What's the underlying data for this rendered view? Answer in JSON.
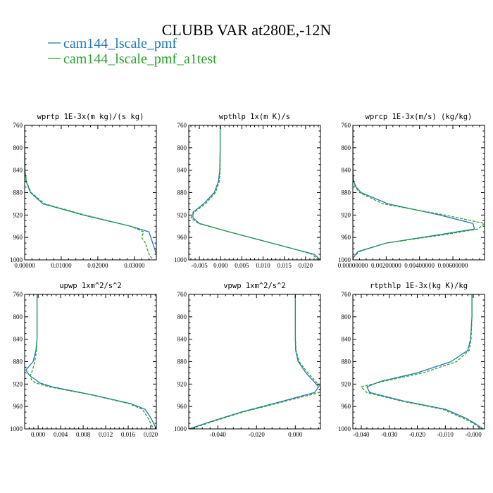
{
  "figure": {
    "title": "CLUBB VAR at280E,-12N",
    "legend": [
      {
        "name": "cam144_lscale_pmf",
        "color": "#1f77b4",
        "dash": "solid"
      },
      {
        "name": "cam144_lscale_pmf_a1test",
        "color": "#2ca02c",
        "dash": "dashed"
      }
    ]
  },
  "chart_data": [
    {
      "type": "line",
      "title": "wprtp  1E-3x(m kg)/(s kg)",
      "xlim": [
        0,
        0.036
      ],
      "xticks": [
        0,
        0.01,
        0.02,
        0.03
      ],
      "xtick_labels": [
        "0.00000",
        "0.01000",
        "0.02000",
        "0.03000"
      ],
      "ylim": [
        760,
        1000
      ],
      "yticks": [
        760,
        800,
        840,
        880,
        920,
        960,
        1000
      ],
      "y": [
        760,
        800,
        840,
        860,
        870,
        880,
        900,
        920,
        940,
        950,
        960,
        970,
        980,
        990,
        1000
      ],
      "series": [
        {
          "name": "cam144_lscale_pmf",
          "x": [
            0,
            0,
            0.0001,
            0.0004,
            0.001,
            0.0016,
            0.005,
            0.016,
            0.029,
            0.034,
            0.0345,
            0.035,
            0.0355,
            0.036,
            0.0365
          ]
        },
        {
          "name": "cam144_lscale_pmf_a1test",
          "x": [
            0,
            0,
            0.0001,
            0.0005,
            0.0011,
            0.0018,
            0.0055,
            0.0165,
            0.029,
            0.0325,
            0.032,
            0.033,
            0.0335,
            0.034,
            0.035
          ]
        }
      ]
    },
    {
      "type": "line",
      "title": "wpthlp  1x(m K)/s",
      "xlim": [
        -0.0075,
        0.0235
      ],
      "xticks": [
        -0.005,
        0,
        0.005,
        0.01,
        0.015,
        0.02
      ],
      "xtick_labels": [
        "-0.005",
        "0.000",
        "0.005",
        "0.010",
        "0.015",
        "0.020"
      ],
      "ylim": [
        760,
        1000
      ],
      "yticks": [
        760,
        800,
        840,
        880,
        920,
        960,
        1000
      ],
      "y": [
        760,
        800,
        840,
        860,
        880,
        900,
        915,
        925,
        935,
        950,
        970,
        980,
        990,
        1000
      ],
      "series": [
        {
          "name": "cam144_lscale_pmf",
          "x": [
            -0.0001,
            -0.0001,
            -0.0002,
            -0.0005,
            -0.0015,
            -0.004,
            -0.0065,
            -0.0065,
            -0.005,
            0.002,
            0.012,
            0.017,
            0.022,
            0.0235
          ]
        },
        {
          "name": "cam144_lscale_pmf_a1test",
          "x": [
            -0.0001,
            -0.0001,
            -0.0001,
            -0.0003,
            -0.0012,
            -0.0036,
            -0.0062,
            -0.007,
            -0.0052,
            0.002,
            0.012,
            0.017,
            0.0215,
            0.023
          ]
        }
      ]
    },
    {
      "type": "line",
      "title": "wprcp  1E-3x(m/s) (kg/kg)",
      "xlim": [
        0,
        0.0079
      ],
      "xticks": [
        0,
        0.002,
        0.004,
        0.006
      ],
      "xtick_labels": [
        "0.00000000",
        "0.00200000",
        "0.00400000",
        "0.00600000"
      ],
      "ylim": [
        760,
        1000
      ],
      "yticks": [
        760,
        800,
        840,
        880,
        920,
        960,
        1000
      ],
      "y": [
        760,
        800,
        840,
        860,
        870,
        880,
        900,
        920,
        935,
        945,
        955,
        970,
        985,
        995,
        1000
      ],
      "series": [
        {
          "name": "cam144_lscale_pmf",
          "x": [
            0,
            0,
            0,
            5e-05,
            0.0002,
            0.0005,
            0.0021,
            0.0052,
            0.0072,
            0.0073,
            0.0052,
            0.002,
            0.0003,
            5e-05,
            0
          ]
        },
        {
          "name": "cam144_lscale_pmf_a1test",
          "x": [
            0,
            0,
            0,
            5e-05,
            0.00015,
            0.0004,
            0.0018,
            0.0055,
            0.0079,
            0.0075,
            0.0055,
            0.002,
            0.0004,
            5e-05,
            0
          ]
        }
      ]
    },
    {
      "type": "line",
      "title": "upwp  1xm^2/s^2",
      "xlim": [
        -0.0024,
        0.021
      ],
      "xticks": [
        0,
        0.004,
        0.008,
        0.012,
        0.016,
        0.02
      ],
      "xtick_labels": [
        "0.000",
        "0.004",
        "0.008",
        "0.012",
        "0.016",
        "0.020"
      ],
      "ylim": [
        760,
        1000
      ],
      "yticks": [
        760,
        800,
        840,
        880,
        920,
        960,
        1000
      ],
      "y": [
        760,
        800,
        840,
        860,
        880,
        895,
        905,
        912,
        918,
        925,
        940,
        955,
        965,
        980,
        1000
      ],
      "series": [
        {
          "name": "cam144_lscale_pmf",
          "x": [
            -0.0002,
            -0.0002,
            -0.0002,
            -0.0004,
            -0.0009,
            -0.0022,
            -0.0015,
            -0.0005,
            0.0003,
            0.0025,
            0.01,
            0.0165,
            0.019,
            0.02,
            0.021
          ]
        },
        {
          "name": "cam144_lscale_pmf_a1test",
          "x": [
            -0.0002,
            -0.0002,
            -0.0002,
            -0.0003,
            -0.0006,
            -0.001,
            -0.0014,
            -0.0012,
            -0.0005,
            0.002,
            0.0098,
            0.0162,
            0.0185,
            0.0195,
            0.0205
          ]
        }
      ]
    },
    {
      "type": "line",
      "title": "vpwp  1xm^2/s^2",
      "xlim": [
        -0.055,
        0.013
      ],
      "xticks": [
        -0.04,
        -0.02,
        0
      ],
      "xtick_labels": [
        "-0.040",
        "-0.020",
        "0.000"
      ],
      "ylim": [
        760,
        1000
      ],
      "yticks": [
        760,
        800,
        840,
        880,
        920,
        960,
        1000
      ],
      "y": [
        760,
        800,
        840,
        860,
        880,
        900,
        915,
        925,
        935,
        950,
        970,
        985,
        1000
      ],
      "series": [
        {
          "name": "cam144_lscale_pmf",
          "x": [
            0,
            0,
            0,
            0.0002,
            0.0015,
            0.0055,
            0.0095,
            0.012,
            0.01,
            -0.006,
            -0.028,
            -0.042,
            -0.055
          ]
        },
        {
          "name": "cam144_lscale_pmf_a1test",
          "x": [
            0,
            0,
            0.0001,
            0.0004,
            0.002,
            0.0065,
            0.0105,
            0.013,
            0.0125,
            -0.0045,
            -0.027,
            -0.041,
            -0.054
          ]
        }
      ]
    },
    {
      "type": "line",
      "title": "rtpthlp  1E-3x(kg K)/kg",
      "xlim": [
        -0.043,
        0.004
      ],
      "xticks": [
        -0.04,
        -0.03,
        -0.02,
        -0.01,
        0
      ],
      "xtick_labels": [
        "-0.040",
        "-0.030",
        "-0.020",
        "-0.010",
        "-0.000"
      ],
      "ylim": [
        760,
        1000
      ],
      "yticks": [
        760,
        800,
        840,
        880,
        920,
        960,
        1000
      ],
      "y": [
        760,
        800,
        840,
        860,
        880,
        900,
        915,
        925,
        935,
        950,
        965,
        980,
        990,
        1000
      ],
      "series": [
        {
          "name": "cam144_lscale_pmf",
          "x": [
            -0.0005,
            -0.0005,
            -0.001,
            -0.002,
            -0.008,
            -0.02,
            -0.033,
            -0.038,
            -0.037,
            -0.025,
            -0.01,
            -0.003,
            0.0005,
            0.0035
          ]
        },
        {
          "name": "cam144_lscale_pmf_a1test",
          "x": [
            -0.0005,
            -0.0005,
            -0.0008,
            -0.0015,
            -0.006,
            -0.018,
            -0.032,
            -0.04,
            -0.038,
            -0.026,
            -0.011,
            -0.004,
            0.0,
            0.003
          ]
        }
      ]
    }
  ]
}
